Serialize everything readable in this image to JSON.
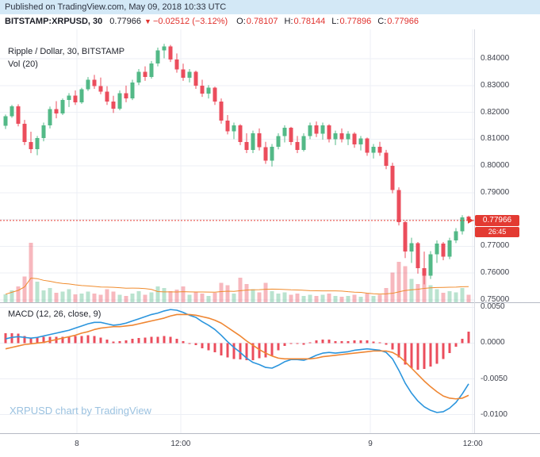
{
  "published_bar": {
    "text": "Published on TradingView.com, May 09, 2018 10:33 UTC"
  },
  "symbol_bar": {
    "symbol": "BITSTAMP:XRPUSD, 30",
    "last": "0.77966",
    "direction_icon": "▼",
    "change": "−0.02512 (−3.12%)",
    "o_label": "O:",
    "o": "0.78107",
    "h_label": "H:",
    "h": "0.78144",
    "l_label": "L:",
    "l": "0.77896",
    "c_label": "C:",
    "c": "0.77966"
  },
  "main_pane": {
    "legend_line1": "Ripple / Dollar, 30, BITSTAMP",
    "legend_line2": "Vol (20)"
  },
  "macd_pane": {
    "legend": "MACD (12, 26, close, 9)"
  },
  "watermark": "XRPUSD chart by TradingView",
  "price_label": {
    "value": "0.77966",
    "countdown": "26:45"
  },
  "colors": {
    "up": "#53b987",
    "down": "#eb4d5c",
    "macd_line": "#2b95dd",
    "signal_line": "#ef8632",
    "histogram": "#eb4d5c",
    "volume_ma": "#f08c2e",
    "price_red": "#e33a32",
    "text_red": "#e0312d",
    "watermark": "#9bc2e0",
    "grid": "#eceff5",
    "published_bg": "#d3e8f6"
  },
  "chart_data": [
    {
      "type": "candlestick",
      "title": "Ripple / Dollar, 30, BITSTAMP",
      "symbol": "BITSTAMP:XRPUSD",
      "interval_minutes": 30,
      "last_price": 0.77966,
      "x_labels": [
        {
          "t": "8",
          "p": 0.162
        },
        {
          "t": "12:00",
          "p": 0.381
        },
        {
          "t": "9",
          "p": 0.781
        },
        {
          "t": "12:00",
          "p": 0.997
        }
      ],
      "y_axis": {
        "top": 0.851,
        "bottom": 0.7488,
        "ticks": [
          "0.84000",
          "0.83000",
          "0.82000",
          "0.81000",
          "0.80000",
          "0.79000",
          "0.78000",
          "0.77000",
          "0.76000",
          "0.75000"
        ]
      },
      "ohlc": [
        [
          0.815,
          0.8192,
          0.8138,
          0.8186
        ],
        [
          0.8186,
          0.8228,
          0.818,
          0.8222
        ],
        [
          0.8222,
          0.823,
          0.8148,
          0.8158
        ],
        [
          0.8158,
          0.8172,
          0.8078,
          0.809
        ],
        [
          0.809,
          0.8128,
          0.8048,
          0.8062
        ],
        [
          0.8062,
          0.8112,
          0.804,
          0.8104
        ],
        [
          0.8104,
          0.8162,
          0.8092,
          0.8152
        ],
        [
          0.8152,
          0.8222,
          0.814,
          0.8212
        ],
        [
          0.8212,
          0.8242,
          0.8178,
          0.8196
        ],
        [
          0.8196,
          0.8252,
          0.819,
          0.8246
        ],
        [
          0.8246,
          0.8272,
          0.822,
          0.8262
        ],
        [
          0.8262,
          0.8282,
          0.8228,
          0.8238
        ],
        [
          0.8238,
          0.8292,
          0.8232,
          0.8286
        ],
        [
          0.8286,
          0.8332,
          0.828,
          0.8322
        ],
        [
          0.8322,
          0.834,
          0.8288,
          0.8298
        ],
        [
          0.8298,
          0.833,
          0.8268,
          0.8278
        ],
        [
          0.8278,
          0.8298,
          0.8228,
          0.824
        ],
        [
          0.824,
          0.8262,
          0.8198,
          0.8214
        ],
        [
          0.8214,
          0.8282,
          0.8208,
          0.8272
        ],
        [
          0.8272,
          0.83,
          0.8238,
          0.8252
        ],
        [
          0.8252,
          0.8322,
          0.8246,
          0.8312
        ],
        [
          0.8312,
          0.8362,
          0.8302,
          0.8352
        ],
        [
          0.8352,
          0.8372,
          0.8318,
          0.8332
        ],
        [
          0.8332,
          0.8392,
          0.8326,
          0.8382
        ],
        [
          0.8382,
          0.8442,
          0.8372,
          0.8432
        ],
        [
          0.8432,
          0.8456,
          0.8402,
          0.8446
        ],
        [
          0.8446,
          0.8452,
          0.8388,
          0.8398
        ],
        [
          0.8398,
          0.842,
          0.8348,
          0.836
        ],
        [
          0.836,
          0.8382,
          0.8318,
          0.833
        ],
        [
          0.833,
          0.8362,
          0.8312,
          0.8352
        ],
        [
          0.8352,
          0.8356,
          0.8288,
          0.83
        ],
        [
          0.83,
          0.8322,
          0.8258,
          0.827
        ],
        [
          0.827,
          0.8302,
          0.8252,
          0.8292
        ],
        [
          0.8292,
          0.8296,
          0.8228,
          0.824
        ],
        [
          0.824,
          0.8252,
          0.8158,
          0.817
        ],
        [
          0.817,
          0.819,
          0.8118,
          0.813
        ],
        [
          0.813,
          0.8162,
          0.81,
          0.8152
        ],
        [
          0.8152,
          0.8156,
          0.8078,
          0.809
        ],
        [
          0.809,
          0.8122,
          0.8048,
          0.806
        ],
        [
          0.806,
          0.8132,
          0.8048,
          0.8122
        ],
        [
          0.8122,
          0.814,
          0.8058,
          0.807
        ],
        [
          0.807,
          0.809,
          0.8008,
          0.802
        ],
        [
          0.802,
          0.8082,
          0.7998,
          0.8072
        ],
        [
          0.8072,
          0.8122,
          0.8062,
          0.8112
        ],
        [
          0.8112,
          0.8152,
          0.8088,
          0.8142
        ],
        [
          0.8142,
          0.8146,
          0.8078,
          0.809
        ],
        [
          0.809,
          0.8112,
          0.8048,
          0.806
        ],
        [
          0.806,
          0.8122,
          0.8054,
          0.8112
        ],
        [
          0.8112,
          0.8162,
          0.81,
          0.8152
        ],
        [
          0.8152,
          0.8166,
          0.8108,
          0.812
        ],
        [
          0.812,
          0.8162,
          0.8098,
          0.8152
        ],
        [
          0.8152,
          0.8156,
          0.8088,
          0.81
        ],
        [
          0.81,
          0.8132,
          0.8078,
          0.8122
        ],
        [
          0.8122,
          0.814,
          0.8088,
          0.81
        ],
        [
          0.81,
          0.813,
          0.8078,
          0.812
        ],
        [
          0.812,
          0.8126,
          0.8068,
          0.808
        ],
        [
          0.808,
          0.8112,
          0.8058,
          0.8102
        ],
        [
          0.8102,
          0.8106,
          0.8038,
          0.805
        ],
        [
          0.805,
          0.8082,
          0.8028,
          0.8072
        ],
        [
          0.8072,
          0.809,
          0.8038,
          0.805
        ],
        [
          0.805,
          0.806,
          0.7988,
          0.8
        ],
        [
          0.8,
          0.8012,
          0.7898,
          0.791
        ],
        [
          0.791,
          0.792,
          0.7778,
          0.779
        ],
        [
          0.779,
          0.7796,
          0.7656,
          0.768
        ],
        [
          0.768,
          0.7732,
          0.7638,
          0.7712
        ],
        [
          0.7712,
          0.7716,
          0.7598,
          0.7618
        ],
        [
          0.7618,
          0.768,
          0.7558,
          0.759
        ],
        [
          0.759,
          0.7682,
          0.7578,
          0.767
        ],
        [
          0.767,
          0.7722,
          0.7638,
          0.771
        ],
        [
          0.771,
          0.7716,
          0.7648,
          0.7662
        ],
        [
          0.7662,
          0.7732,
          0.7652,
          0.7722
        ],
        [
          0.7722,
          0.7768,
          0.7712,
          0.7756
        ],
        [
          0.7756,
          0.7816,
          0.7744,
          0.7808
        ],
        [
          0.78107,
          0.78144,
          0.77896,
          0.77966
        ]
      ],
      "volume": {
        "label": "Vol (20)",
        "ma_length": 20,
        "scale": "relative",
        "values": [
          14,
          20,
          26,
          42,
          95,
          34,
          20,
          24,
          16,
          18,
          22,
          14,
          15,
          18,
          15,
          13,
          22,
          18,
          13,
          11,
          15,
          19,
          13,
          17,
          26,
          24,
          19,
          21,
          26,
          13,
          17,
          15,
          11,
          16,
          32,
          28,
          15,
          40,
          30,
          22,
          17,
          32,
          19,
          15,
          17,
          13,
          15,
          11,
          13,
          11,
          13,
          15,
          11,
          10,
          11,
          13,
          10,
          15,
          11,
          13,
          24,
          48,
          65,
          58,
          38,
          30,
          44,
          28,
          22,
          16,
          19,
          17,
          24,
          13
        ]
      }
    },
    {
      "type": "line",
      "title": "MACD (12, 26, close, 9)",
      "histogram_rule": "macd_minus_signal",
      "y_axis": {
        "top": 0.0056,
        "bottom": -0.0126,
        "ticks": [
          "0.0050",
          "0.0000",
          "-0.0050",
          "-0.0100"
        ]
      },
      "series": [
        {
          "name": "MACD",
          "values": [
            0.0006,
            0.0008,
            0.0009,
            0.0008,
            0.0007,
            0.0008,
            0.001,
            0.0012,
            0.0014,
            0.0016,
            0.0018,
            0.0021,
            0.0024,
            0.0027,
            0.0029,
            0.0029,
            0.0027,
            0.0025,
            0.0026,
            0.0028,
            0.0031,
            0.0034,
            0.0037,
            0.004,
            0.0042,
            0.0045,
            0.0047,
            0.0046,
            0.0043,
            0.0039,
            0.0036,
            0.003,
            0.0025,
            0.0019,
            0.0011,
            0.0002,
            -0.0006,
            -0.0013,
            -0.0021,
            -0.0027,
            -0.003,
            -0.0034,
            -0.0035,
            -0.0031,
            -0.0026,
            -0.0023,
            -0.0023,
            -0.0024,
            -0.0021,
            -0.0017,
            -0.0014,
            -0.0013,
            -0.0014,
            -0.0013,
            -0.0012,
            -0.001,
            -0.0009,
            -0.0008,
            -0.0009,
            -0.001,
            -0.0013,
            -0.0022,
            -0.0038,
            -0.0056,
            -0.007,
            -0.0081,
            -0.0089,
            -0.0094,
            -0.0097,
            -0.0096,
            -0.0091,
            -0.0083,
            -0.0071,
            -0.0057
          ]
        },
        {
          "name": "Signal",
          "values": [
            -0.0008,
            -0.0006,
            -0.0004,
            -0.0002,
            -0.0001,
            0.0,
            0.0001,
            0.0003,
            0.0005,
            0.0007,
            0.0009,
            0.0011,
            0.0014,
            0.0016,
            0.0019,
            0.0021,
            0.0022,
            0.0023,
            0.0023,
            0.0024,
            0.0025,
            0.0027,
            0.0029,
            0.0031,
            0.0033,
            0.0035,
            0.0038,
            0.004,
            0.004,
            0.004,
            0.0039,
            0.0037,
            0.0035,
            0.0032,
            0.0028,
            0.0022,
            0.0016,
            0.001,
            0.0003,
            -0.0003,
            -0.0009,
            -0.0014,
            -0.0018,
            -0.0021,
            -0.0022,
            -0.0022,
            -0.0022,
            -0.0022,
            -0.0022,
            -0.0021,
            -0.0019,
            -0.0018,
            -0.0017,
            -0.0016,
            -0.0015,
            -0.0014,
            -0.0013,
            -0.0012,
            -0.0011,
            -0.0011,
            -0.0011,
            -0.0013,
            -0.0018,
            -0.0026,
            -0.0035,
            -0.0044,
            -0.0053,
            -0.0061,
            -0.0068,
            -0.0074,
            -0.0077,
            -0.0078,
            -0.0077,
            -0.0073
          ]
        }
      ]
    }
  ]
}
